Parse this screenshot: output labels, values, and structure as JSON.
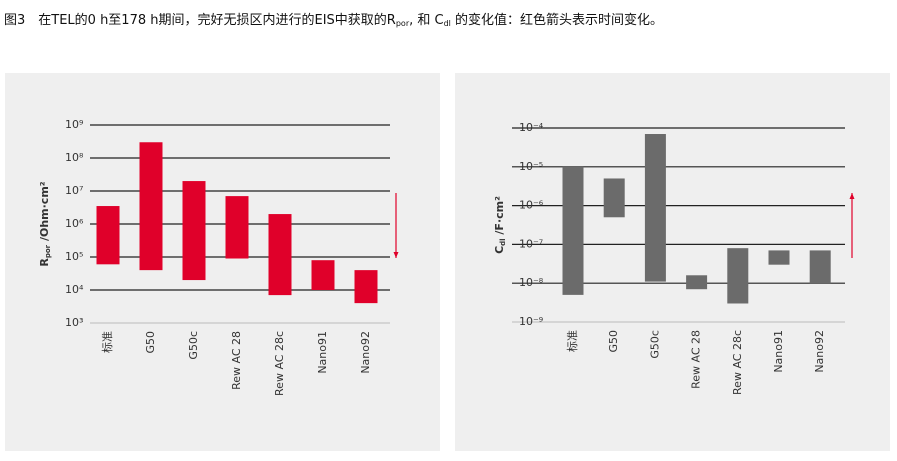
{
  "title": [
    "图3　在TEL的0 h至178 h期间，完好无损区内进行的EIS中获取的R",
    "por",
    ", 和 C",
    "dl",
    " 的变化值：红色箭头表示时间变化。"
  ],
  "chart_data": [
    {
      "type": "range-bar",
      "log": true,
      "color": "#e0002a",
      "time_arrow": "down",
      "ylabel": [
        "R",
        "por",
        " /Ohm·cm²"
      ],
      "categories": [
        "标准",
        "G50",
        "G50c",
        "Rew AC 28",
        "Rew AC 28c",
        "Nano91",
        "Nano92"
      ],
      "low": [
        60000,
        40000,
        20000,
        90000,
        7000,
        10000,
        4000
      ],
      "high": [
        3500000,
        300000000,
        20000000,
        7000000,
        2000000,
        80000,
        40000
      ],
      "ylim": [
        1000,
        1000000000
      ],
      "yticks": [
        {
          "value": 1000,
          "label": "10³"
        },
        {
          "value": 10000,
          "label": "10⁴"
        },
        {
          "value": 100000,
          "label": "10⁵"
        },
        {
          "value": 1000000,
          "label": "10⁶"
        },
        {
          "value": 10000000,
          "label": "10⁷"
        },
        {
          "value": 100000000,
          "label": "10⁸"
        },
        {
          "value": 1000000000,
          "label": "10⁹"
        }
      ],
      "grid": true
    },
    {
      "type": "range-bar",
      "log": true,
      "color": "#6b6b6b",
      "time_arrow": "up",
      "ylabel": [
        "C",
        "dl",
        " /F·cm²"
      ],
      "categories": [
        "标准",
        "G50",
        "G50c",
        "Rew AC 28",
        "Rew AC 28c",
        "Nano91",
        "Nano92"
      ],
      "low": [
        5e-09,
        5e-07,
        1.1e-08,
        7e-09,
        3e-09,
        3e-08,
        1e-08
      ],
      "high": [
        1e-05,
        5e-06,
        7e-05,
        1.6e-08,
        8e-08,
        7e-08,
        7e-08
      ],
      "ylim": [
        1e-09,
        0.0001
      ],
      "yticks": [
        {
          "value": 1e-09,
          "label": "10⁻⁹"
        },
        {
          "value": 1e-08,
          "label": "10⁻⁸"
        },
        {
          "value": 1e-07,
          "label": "10⁻⁷"
        },
        {
          "value": 1e-06,
          "label": "10⁻⁶"
        },
        {
          "value": 1e-05,
          "label": "10⁻⁵"
        },
        {
          "value": 0.0001,
          "label": "10⁻⁴"
        }
      ],
      "grid": true
    }
  ]
}
